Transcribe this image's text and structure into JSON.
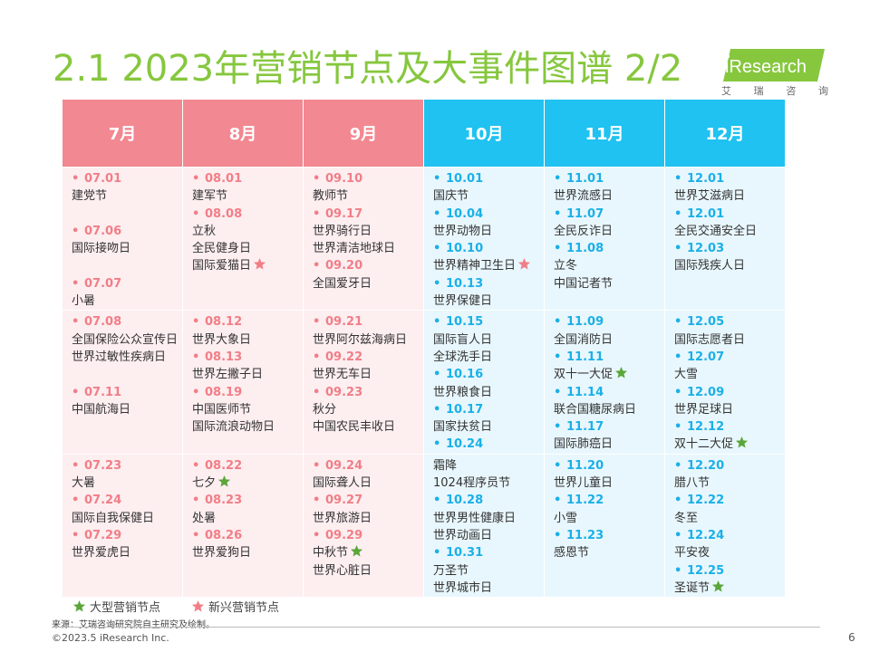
{
  "title": "2.1 2023年营销节点及大事件图谱 2/2",
  "logo": {
    "text": "iResearch",
    "sub": [
      "艾",
      "瑞",
      "咨",
      "询"
    ]
  },
  "colors": {
    "warm_header": "#f28891",
    "cool_header": "#1fc2f1",
    "warm_body": "#fdeef0",
    "cool_body": "#e8f7fd",
    "green_star": "#5aa63a",
    "pink_star": "#f17e87",
    "title": "#86c73e"
  },
  "months": [
    "7月",
    "8月",
    "9月",
    "10月",
    "11月",
    "12月"
  ],
  "legend": {
    "large": "大型营销节点",
    "emerging": "新兴营销节点"
  },
  "source": "来源：艾瑞咨询研究院自主研究及绘制。",
  "copyright": "©2023.5 iResearch Inc.",
  "page_number": "6",
  "rows": [
    [
      [
        {
          "d": "07.01",
          "t": [
            "建党节"
          ]
        },
        {
          "d": "07.06",
          "t": [
            "国际接吻日"
          ]
        },
        {
          "d": "07.07",
          "t": [
            "小暑"
          ]
        }
      ],
      [
        {
          "d": "08.01",
          "t": [
            "建军节"
          ]
        },
        {
          "d": "08.08",
          "t": [
            "立秋",
            "全民健身日",
            "国际爱猫日"
          ]
        }
      ],
      [
        {
          "d": "09.10",
          "t": [
            "教师节"
          ]
        },
        {
          "d": "09.17",
          "t": [
            "世界骑行日",
            "世界清洁地球日"
          ]
        },
        {
          "d": "09.20",
          "t": [
            "全国爱牙日"
          ]
        }
      ],
      [
        {
          "d": "10.01",
          "t": [
            "国庆节"
          ]
        },
        {
          "d": "10.04",
          "t": [
            "世界动物日"
          ]
        },
        {
          "d": "10.10",
          "t": [
            "世界精神卫生日"
          ]
        },
        {
          "d": "10.13",
          "t": [
            "世界保健日"
          ]
        }
      ],
      [
        {
          "d": "11.01",
          "t": [
            "世界流感日"
          ]
        },
        {
          "d": "11.07",
          "t": [
            "全民反诈日"
          ]
        },
        {
          "d": "11.08",
          "t": [
            "立冬",
            "中国记者节"
          ]
        }
      ],
      [
        {
          "d": "12.01",
          "t": [
            "世界艾滋病日"
          ]
        },
        {
          "d": "12.01",
          "t": [
            "全民交通安全日"
          ]
        },
        {
          "d": "12.03",
          "t": [
            "国际残疾人日"
          ]
        }
      ]
    ],
    [
      [
        {
          "d": "07.08",
          "t": [
            "全国保险公众宣传日",
            "世界过敏性疾病日"
          ]
        },
        {
          "d": "07.11",
          "t": [
            "中国航海日"
          ]
        }
      ],
      [
        {
          "d": "08.12",
          "t": [
            "世界大象日"
          ]
        },
        {
          "d": "08.13",
          "t": [
            "世界左撇子日"
          ]
        },
        {
          "d": "08.19",
          "t": [
            "中国医师节",
            "国际流浪动物日"
          ]
        }
      ],
      [
        {
          "d": "09.21",
          "t": [
            "世界阿尔兹海病日"
          ]
        },
        {
          "d": "09.22",
          "t": [
            "世界无车日"
          ]
        },
        {
          "d": "09.23",
          "t": [
            "秋分",
            "中国农民丰收日"
          ]
        }
      ],
      [
        {
          "d": "10.15",
          "t": [
            "国际盲人日",
            "全球洗手日"
          ]
        },
        {
          "d": "10.16",
          "t": [
            "世界粮食日"
          ]
        },
        {
          "d": "10.17",
          "t": [
            "国家扶贫日"
          ]
        },
        {
          "d": "10.24",
          "t": []
        }
      ],
      [
        {
          "d": "11.09",
          "t": [
            "全国消防日"
          ]
        },
        {
          "d": "11.11",
          "t": [
            "双十一大促"
          ]
        },
        {
          "d": "11.14",
          "t": [
            "联合国糖尿病日"
          ]
        },
        {
          "d": "11.17",
          "t": [
            "国际肺癌日"
          ]
        }
      ],
      [
        {
          "d": "12.05",
          "t": [
            "国际志愿者日"
          ]
        },
        {
          "d": "12.07",
          "t": [
            "大雪"
          ]
        },
        {
          "d": "12.09",
          "t": [
            "世界足球日"
          ]
        },
        {
          "d": "12.12",
          "t": [
            "双十二大促"
          ]
        }
      ]
    ],
    [
      [
        {
          "d": "07.23",
          "t": [
            "大暑"
          ]
        },
        {
          "d": "07.24",
          "t": [
            "国际自我保健日"
          ]
        },
        {
          "d": "07.29",
          "t": [
            "世界爱虎日"
          ]
        }
      ],
      [
        {
          "d": "08.22",
          "t": [
            "七夕"
          ]
        },
        {
          "d": "08.23",
          "t": [
            "处暑"
          ]
        },
        {
          "d": "08.26",
          "t": [
            "世界爱狗日"
          ]
        }
      ],
      [
        {
          "d": "09.24",
          "t": [
            "国际聋人日"
          ]
        },
        {
          "d": "09.27",
          "t": [
            "世界旅游日"
          ]
        },
        {
          "d": "09.29",
          "t": [
            "中秋节",
            "世界心脏日"
          ]
        }
      ],
      [
        {
          "d": "",
          "t": [
            "霜降",
            "1024程序员节"
          ]
        },
        {
          "d": "10.28",
          "t": [
            "世界男性健康日",
            "世界动画日"
          ]
        },
        {
          "d": "10.31",
          "t": [
            "万圣节",
            "世界城市日"
          ]
        }
      ],
      [
        {
          "d": "11.20",
          "t": [
            "世界儿童日"
          ]
        },
        {
          "d": "11.22",
          "t": [
            "小雪"
          ]
        },
        {
          "d": "11.23",
          "t": [
            "感恩节"
          ]
        }
      ],
      [
        {
          "d": "12.20",
          "t": [
            "腊八节"
          ]
        },
        {
          "d": "12.22",
          "t": [
            "冬至"
          ]
        },
        {
          "d": "12.24",
          "t": [
            "平安夜"
          ]
        },
        {
          "d": "12.25",
          "t": [
            "圣诞节"
          ]
        }
      ]
    ]
  ],
  "stars": {
    "0-1-1-2": "pink",
    "0-3-2-0": "pink",
    "1-4-1-0": "green",
    "1-5-3-0": "green",
    "2-1-0-0": "green",
    "2-2-2-0": "green",
    "2-5-3-0": "green"
  }
}
